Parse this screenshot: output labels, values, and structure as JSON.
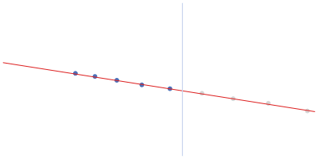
{
  "chart_data": {
    "type": "scatter",
    "xlim": [
      0,
      400
    ],
    "ylim": [
      0,
      200
    ],
    "tick_labels": false,
    "grid": false,
    "series": [
      {
        "type": "line",
        "color": "#c9d5ee",
        "line_style": "solid",
        "marker": "none",
        "x": [
          230,
          230
        ],
        "values": [
          0,
          200
        ]
      },
      {
        "type": "line",
        "color": "#dd2222",
        "line_style": "solid",
        "marker": "none",
        "x": [
          0,
          400
        ],
        "values": [
          122,
          58
        ]
      },
      {
        "type": "scatter",
        "color": "#d4d4d4",
        "marker": "circle",
        "x": [
          255,
          295,
          340,
          390
        ],
        "values": [
          82,
          75,
          69,
          59
        ]
      },
      {
        "type": "scatter",
        "color": "#4a6fb8",
        "marker": "circle",
        "x": [
          93,
          118,
          146,
          178,
          214
        ],
        "values": [
          108,
          104,
          99,
          93,
          88
        ]
      }
    ]
  }
}
